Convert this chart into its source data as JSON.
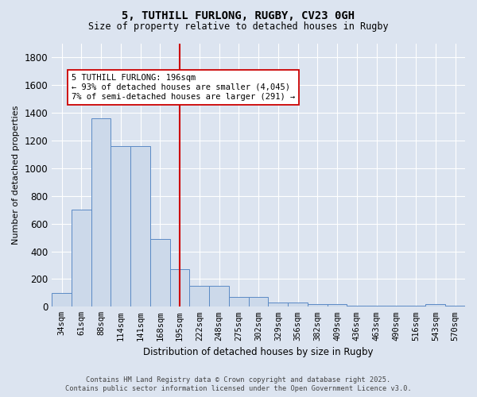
{
  "title_line1": "5, TUTHILL FURLONG, RUGBY, CV23 0GH",
  "title_line2": "Size of property relative to detached houses in Rugby",
  "xlabel": "Distribution of detached houses by size in Rugby",
  "ylabel": "Number of detached properties",
  "bar_labels": [
    "34sqm",
    "61sqm",
    "88sqm",
    "114sqm",
    "141sqm",
    "168sqm",
    "195sqm",
    "222sqm",
    "248sqm",
    "275sqm",
    "302sqm",
    "329sqm",
    "356sqm",
    "382sqm",
    "409sqm",
    "436sqm",
    "463sqm",
    "490sqm",
    "516sqm",
    "543sqm",
    "570sqm"
  ],
  "bar_values": [
    100,
    700,
    1360,
    1160,
    1160,
    490,
    270,
    150,
    150,
    70,
    70,
    30,
    30,
    20,
    20,
    5,
    5,
    5,
    5,
    20,
    5
  ],
  "bar_color": "#ccd9ea",
  "bar_edge_color": "#5b8ac5",
  "background_color": "#dce4f0",
  "grid_color": "#ffffff",
  "ylim": [
    0,
    1900
  ],
  "yticks": [
    0,
    200,
    400,
    600,
    800,
    1000,
    1200,
    1400,
    1600,
    1800
  ],
  "vline_x_index": 6,
  "vline_color": "#cc0000",
  "annotation_text": "5 TUTHILL FURLONG: 196sqm\n← 93% of detached houses are smaller (4,045)\n7% of semi-detached houses are larger (291) →",
  "annotation_box_color": "#ffffff",
  "annotation_box_edge": "#cc0000",
  "footer_line1": "Contains HM Land Registry data © Crown copyright and database right 2025.",
  "footer_line2": "Contains public sector information licensed under the Open Government Licence v3.0."
}
